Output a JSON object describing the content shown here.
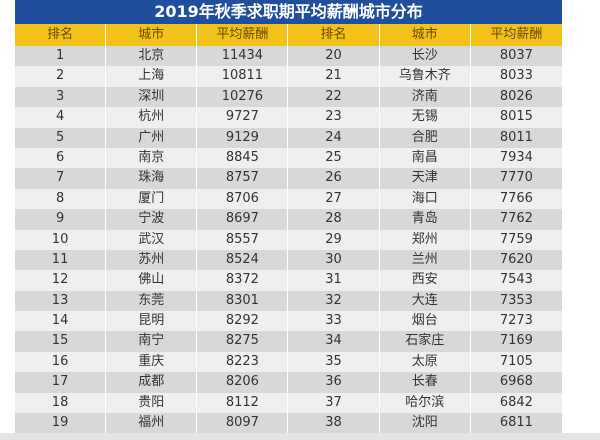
{
  "title": "2019年秋季求职期平均薪酬城市分布",
  "headers": [
    "排名",
    "城市",
    "平均薪酬",
    "排名",
    "城市",
    "平均薪酬"
  ],
  "colors": {
    "title_bg": "#1f4e9c",
    "header_bg": "#f2c21b",
    "row_odd": "#d8d8d8",
    "row_even": "#efefef"
  },
  "rows": [
    [
      "1",
      "北京",
      "11434",
      "20",
      "长沙",
      "8037"
    ],
    [
      "2",
      "上海",
      "10811",
      "21",
      "乌鲁木齐",
      "8033"
    ],
    [
      "3",
      "深圳",
      "10276",
      "22",
      "济南",
      "8026"
    ],
    [
      "4",
      "杭州",
      "9727",
      "23",
      "无锡",
      "8015"
    ],
    [
      "5",
      "广州",
      "9129",
      "24",
      "合肥",
      "8011"
    ],
    [
      "6",
      "南京",
      "8845",
      "25",
      "南昌",
      "7934"
    ],
    [
      "7",
      "珠海",
      "8757",
      "26",
      "天津",
      "7770"
    ],
    [
      "8",
      "厦门",
      "8706",
      "27",
      "海口",
      "7766"
    ],
    [
      "9",
      "宁波",
      "8697",
      "28",
      "青岛",
      "7762"
    ],
    [
      "10",
      "武汉",
      "8557",
      "29",
      "郑州",
      "7759"
    ],
    [
      "11",
      "苏州",
      "8524",
      "30",
      "兰州",
      "7620"
    ],
    [
      "12",
      "佛山",
      "8372",
      "31",
      "西安",
      "7543"
    ],
    [
      "13",
      "东莞",
      "8301",
      "32",
      "大连",
      "7353"
    ],
    [
      "14",
      "昆明",
      "8292",
      "33",
      "烟台",
      "7273"
    ],
    [
      "15",
      "南宁",
      "8275",
      "34",
      "石家庄",
      "7169"
    ],
    [
      "16",
      "重庆",
      "8223",
      "35",
      "太原",
      "7105"
    ],
    [
      "17",
      "成都",
      "8206",
      "36",
      "长春",
      "6968"
    ],
    [
      "18",
      "贵阳",
      "8112",
      "37",
      "哈尔滨",
      "6842"
    ],
    [
      "19",
      "福州",
      "8097",
      "38",
      "沈阳",
      "6811"
    ]
  ]
}
